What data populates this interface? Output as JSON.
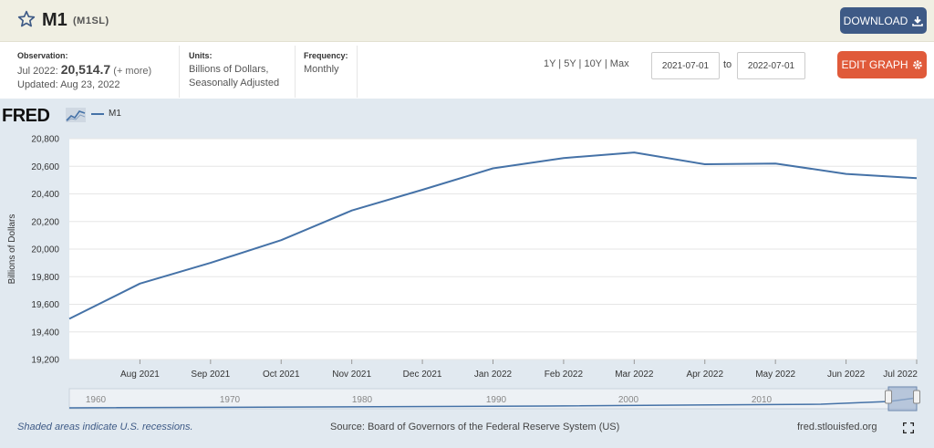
{
  "header": {
    "title": "M1",
    "series_id": "(M1SL)",
    "download_label": "DOWNLOAD"
  },
  "meta": {
    "observation_label": "Observation:",
    "observation_period": "Jul 2022:",
    "observation_value": "20,514.7",
    "observation_more": "(+ more)",
    "updated": "Updated: Aug 23, 2022",
    "units_label": "Units:",
    "units_line1": "Billions of Dollars,",
    "units_line2": "Seasonally Adjusted",
    "frequency_label": "Frequency:",
    "frequency_value": "Monthly"
  },
  "controls": {
    "range_links": "1Y | 5Y | 10Y | Max",
    "start_date": "2021-07-01",
    "to_label": "to",
    "end_date": "2022-07-01",
    "edit_label": "EDIT GRAPH"
  },
  "logo": {
    "text": "FRED"
  },
  "footer": {
    "recession_note": "Shaded areas indicate U.S. recessions.",
    "source": "Source: Board of Governors of the Federal Reserve System (US)",
    "url": "fred.stlouisfed.org"
  },
  "colors": {
    "series": "#4572a7",
    "title_bar": "#f0efe3",
    "download_button": "#3e5a86",
    "edit_button": "#e05a3a",
    "chart_background": "#e1e9f0"
  },
  "icons": {
    "star": "star-outline-icon",
    "download": "download-arrow-icon",
    "edit": "gear-icon",
    "fullscreen": "fullscreen-icon"
  },
  "chart_data": {
    "type": "line",
    "title": "",
    "xlabel": "",
    "ylabel": "Billions of Dollars",
    "legend": "top-left",
    "grid": true,
    "ylim": [
      19200,
      20800
    ],
    "yticks": [
      "19,200",
      "19,400",
      "19,600",
      "19,800",
      "20,000",
      "20,200",
      "20,400",
      "20,600",
      "20,800"
    ],
    "ytick_values": [
      19200,
      19400,
      19600,
      19800,
      20000,
      20200,
      20400,
      20600,
      20800
    ],
    "categories": [
      "Jul 2021",
      "Aug 2021",
      "Sep 2021",
      "Oct 2021",
      "Nov 2021",
      "Dec 2021",
      "Jan 2022",
      "Feb 2022",
      "Mar 2022",
      "Apr 2022",
      "May 2022",
      "Jun 2022",
      "Jul 2022"
    ],
    "xtick_labels": [
      "Aug 2021",
      "Sep 2021",
      "Oct 2021",
      "Nov 2021",
      "Dec 2021",
      "Jan 2022",
      "Feb 2022",
      "Mar 2022",
      "Apr 2022",
      "May 2022",
      "Jun 2022",
      "Jul 2022"
    ],
    "series": [
      {
        "name": "M1",
        "values": [
          19495,
          19750,
          19900,
          20065,
          20280,
          20430,
          20585,
          20660,
          20700,
          20615,
          20620,
          20545,
          20514.7
        ]
      }
    ],
    "navigator": {
      "labels": [
        "1960",
        "1970",
        "1980",
        "1990",
        "2000",
        "2010"
      ]
    }
  }
}
